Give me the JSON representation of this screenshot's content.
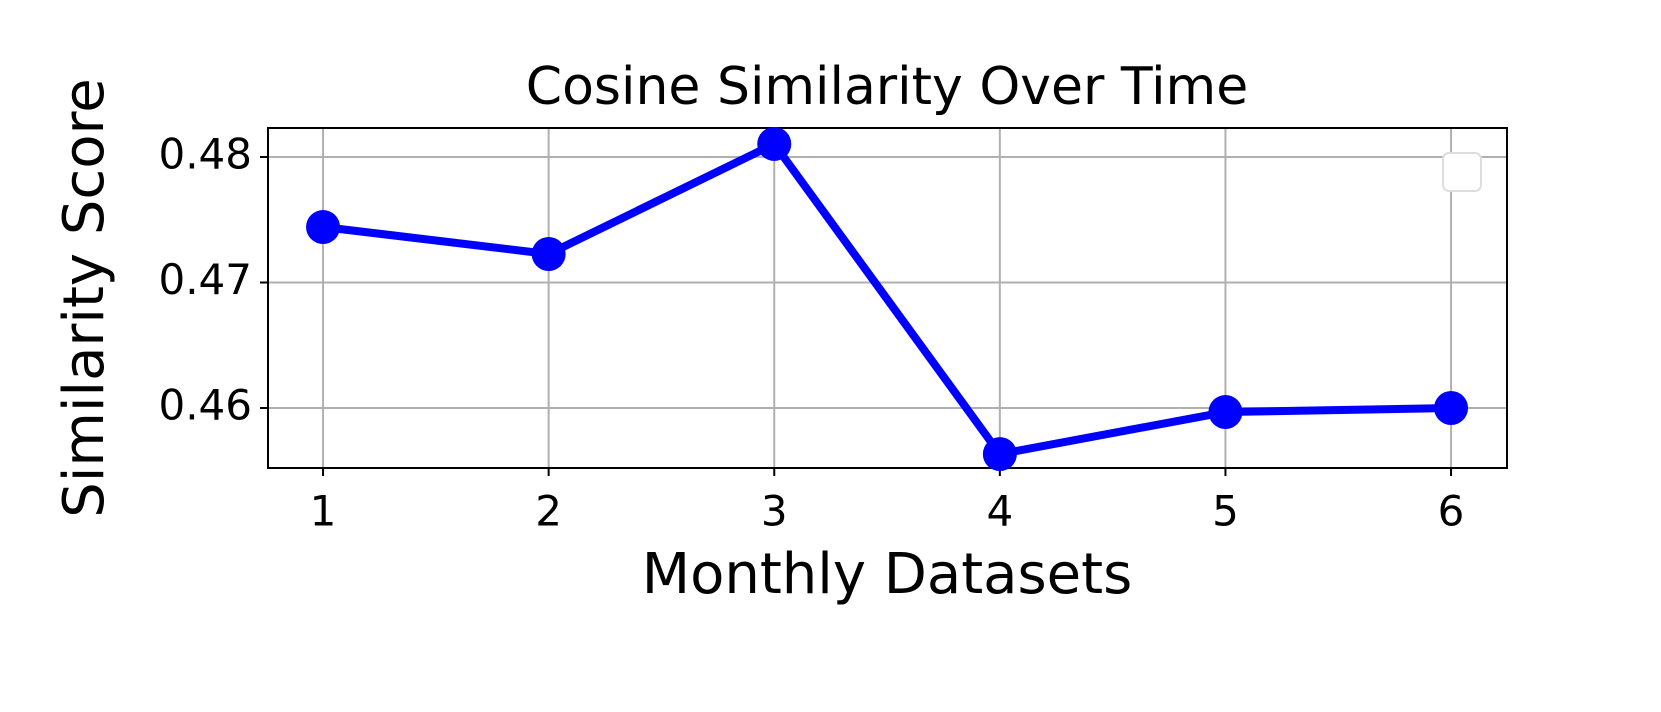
{
  "chart_data": {
    "type": "line",
    "title": "Cosine Similarity Over Time",
    "x_label": "Monthly Datasets",
    "y_label": "Similarity Score",
    "x": [
      1,
      2,
      3,
      4,
      5,
      6
    ],
    "series": [
      {
        "color": "#0000ff",
        "values": [
          0.47442,
          0.47227,
          0.48104,
          0.45633,
          0.45968,
          0.46
        ]
      }
    ],
    "xlim": [
      0.756,
      6.248
    ],
    "xticks": [
      1,
      2,
      3,
      4,
      5,
      6
    ],
    "ylim": [
      0.45522,
      0.48231
    ],
    "yticks": [
      0.46,
      0.47,
      0.48
    ],
    "grid": true
  }
}
